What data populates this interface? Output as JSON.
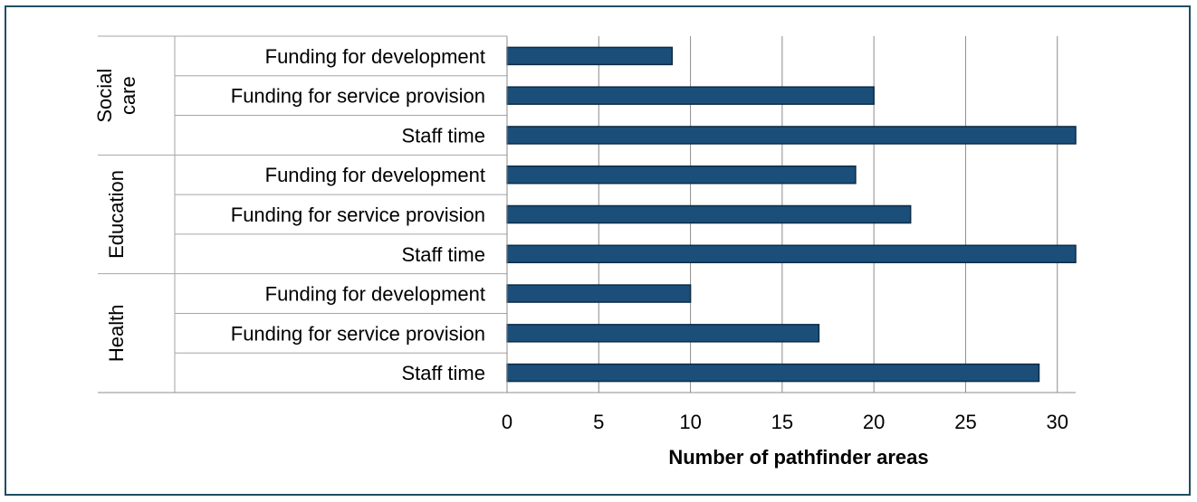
{
  "chart_data": {
    "type": "bar",
    "orientation": "horizontal",
    "title": "",
    "xlabel": "Number of pathfinder areas",
    "ylabel": "",
    "xlim": [
      0,
      31
    ],
    "xticks": [
      0,
      5,
      10,
      15,
      20,
      25,
      30
    ],
    "grid": true,
    "legend": "none",
    "bar_color": "#1b4f7a",
    "groups": [
      {
        "name": "Social care",
        "name_lines": [
          "Social",
          "care"
        ],
        "categories": [
          "Funding for development",
          "Funding for service provision",
          "Staff time"
        ],
        "values": [
          9,
          20,
          31
        ]
      },
      {
        "name": "Education",
        "name_lines": [
          "Education"
        ],
        "categories": [
          "Funding for development",
          "Funding for service provision",
          "Staff time"
        ],
        "values": [
          19,
          22,
          31
        ]
      },
      {
        "name": "Health",
        "name_lines": [
          "Health"
        ],
        "categories": [
          "Funding for development",
          "Funding for service provision",
          "Staff time"
        ],
        "values": [
          10,
          17,
          29
        ]
      }
    ]
  }
}
